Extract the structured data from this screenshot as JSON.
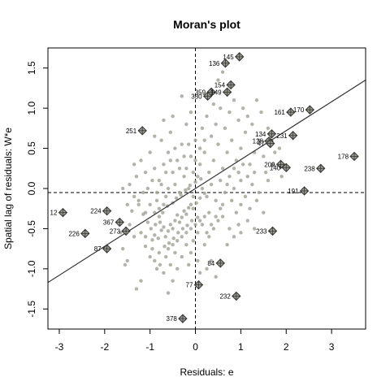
{
  "chart_data": {
    "type": "scatter",
    "title": "Moran's plot",
    "xlabel": "Residuals: e",
    "ylabel": "Spatial lag of residuals: W*e",
    "xlim": [
      -3.25,
      3.75
    ],
    "ylim": [
      -1.75,
      1.75
    ],
    "xticks": [
      -3,
      -2,
      -1,
      0,
      1,
      2,
      3
    ],
    "yticks": [
      -1.5,
      -1.0,
      -0.5,
      0.0,
      0.5,
      1.0,
      1.5
    ],
    "xtick_labels": [
      "-3",
      "-2",
      "-1",
      "0",
      "1",
      "2",
      "3"
    ],
    "ytick_labels": [
      "-1.5",
      "-1.0",
      "-0.5",
      "0.0",
      "0.5",
      "1.0",
      "1.5"
    ],
    "mean_x": 0.0,
    "mean_y": -0.05,
    "regression": {
      "intercept": 0.0,
      "slope": 0.36
    },
    "point_color": "#a6a69c",
    "influential_color": "#333333",
    "influential": [
      {
        "id": "145",
        "x": 0.97,
        "y": 1.64
      },
      {
        "id": "136",
        "x": 0.66,
        "y": 1.56
      },
      {
        "id": "154",
        "x": 0.78,
        "y": 1.29
      },
      {
        "id": "359",
        "x": 0.35,
        "y": 1.2
      },
      {
        "id": "149",
        "x": 0.7,
        "y": 1.2
      },
      {
        "id": "330",
        "x": 0.27,
        "y": 1.15
      },
      {
        "id": "170",
        "x": 2.52,
        "y": 0.98
      },
      {
        "id": "161",
        "x": 2.1,
        "y": 0.95
      },
      {
        "id": "251",
        "x": -1.17,
        "y": 0.72
      },
      {
        "id": "134",
        "x": 1.68,
        "y": 0.68
      },
      {
        "id": "231",
        "x": 2.15,
        "y": 0.66
      },
      {
        "id": "128",
        "x": 1.62,
        "y": 0.59
      },
      {
        "id": "47",
        "x": 1.65,
        "y": 0.56
      },
      {
        "id": "178",
        "x": 3.5,
        "y": 0.4
      },
      {
        "id": "209",
        "x": 1.88,
        "y": 0.3
      },
      {
        "id": "140",
        "x": 2.0,
        "y": 0.26
      },
      {
        "id": "238",
        "x": 2.76,
        "y": 0.25
      },
      {
        "id": "191",
        "x": 2.4,
        "y": -0.03
      },
      {
        "id": "224",
        "x": -1.95,
        "y": -0.28
      },
      {
        "id": "12",
        "x": -2.92,
        "y": -0.3
      },
      {
        "id": "367",
        "x": -1.67,
        "y": -0.42
      },
      {
        "id": "273",
        "x": -1.53,
        "y": -0.53
      },
      {
        "id": "233",
        "x": 1.7,
        "y": -0.53
      },
      {
        "id": "226",
        "x": -2.43,
        "y": -0.56
      },
      {
        "id": "87",
        "x": -1.95,
        "y": -0.75
      },
      {
        "id": "84",
        "x": 0.55,
        "y": -0.93
      },
      {
        "id": "77",
        "x": 0.07,
        "y": -1.2
      },
      {
        "id": "232",
        "x": 0.9,
        "y": -1.34
      },
      {
        "id": "378",
        "x": -0.28,
        "y": -1.62
      }
    ],
    "points": [
      [
        -1.3,
        -1.25
      ],
      [
        -1.2,
        -1.15
      ],
      [
        -1.5,
        -0.9
      ],
      [
        -1.1,
        -0.72
      ],
      [
        -0.95,
        -0.64
      ],
      [
        -0.9,
        -0.58
      ],
      [
        -0.82,
        -0.62
      ],
      [
        -0.75,
        -0.52
      ],
      [
        -0.7,
        -0.48
      ],
      [
        -0.66,
        -0.6
      ],
      [
        -0.6,
        -0.53
      ],
      [
        -0.55,
        -0.45
      ],
      [
        -0.5,
        -0.5
      ],
      [
        -0.45,
        -0.4
      ],
      [
        -0.4,
        -0.33
      ],
      [
        -0.35,
        -0.42
      ],
      [
        -0.3,
        -0.36
      ],
      [
        -0.25,
        -0.28
      ],
      [
        -0.2,
        -0.32
      ],
      [
        -0.15,
        -0.24
      ],
      [
        -0.1,
        -0.2
      ],
      [
        -0.05,
        -0.25
      ],
      [
        0.02,
        -0.18
      ],
      [
        0.1,
        -0.12
      ],
      [
        0.2,
        -0.06
      ],
      [
        -0.8,
        -0.35
      ],
      [
        -0.72,
        -0.3
      ],
      [
        -0.62,
        -0.22
      ],
      [
        -0.5,
        -0.18
      ],
      [
        -0.42,
        -0.12
      ],
      [
        -0.32,
        -0.08
      ],
      [
        -0.22,
        -0.02
      ],
      [
        -0.12,
        0.04
      ],
      [
        0.0,
        0.08
      ],
      [
        0.12,
        0.12
      ],
      [
        -0.9,
        -0.9
      ],
      [
        -0.8,
        -0.8
      ],
      [
        -0.68,
        -0.72
      ],
      [
        -0.58,
        -0.68
      ],
      [
        -0.48,
        -0.62
      ],
      [
        -0.38,
        -0.55
      ],
      [
        -0.28,
        -0.5
      ],
      [
        -0.18,
        -0.46
      ],
      [
        -0.08,
        -0.4
      ],
      [
        0.05,
        -0.36
      ],
      [
        -1.05,
        -0.42
      ],
      [
        -1.15,
        -0.32
      ],
      [
        -1.25,
        -0.2
      ],
      [
        -1.35,
        -0.1
      ],
      [
        -1.4,
        -0.28
      ],
      [
        -1.2,
        -0.55
      ],
      [
        -1.0,
        -0.85
      ],
      [
        -0.85,
        -1.0
      ],
      [
        -0.7,
        -1.05
      ],
      [
        -0.6,
        -1.3
      ],
      [
        -1.6,
        -0.75
      ],
      [
        -1.55,
        -0.95
      ],
      [
        -0.98,
        -0.5
      ],
      [
        -0.88,
        -0.45
      ],
      [
        -0.78,
        -0.42
      ],
      [
        -0.2,
        -0.7
      ],
      [
        -0.1,
        -0.8
      ],
      [
        0.05,
        -0.9
      ],
      [
        0.2,
        -0.7
      ],
      [
        0.3,
        -0.6
      ],
      [
        0.4,
        -0.5
      ],
      [
        0.5,
        -0.4
      ],
      [
        0.6,
        -0.35
      ],
      [
        0.35,
        -0.9
      ],
      [
        0.25,
        -1.0
      ],
      [
        0.45,
        -1.1
      ],
      [
        -0.4,
        -1.0
      ],
      [
        -0.5,
        -1.15
      ],
      [
        0.7,
        -0.7
      ],
      [
        0.85,
        -0.6
      ],
      [
        1.0,
        -0.55
      ],
      [
        1.15,
        -0.4
      ],
      [
        1.3,
        -0.5
      ],
      [
        0.9,
        -0.3
      ],
      [
        -0.9,
        0.25
      ],
      [
        -0.8,
        0.1
      ],
      [
        -0.7,
        0.3
      ],
      [
        -0.6,
        0.45
      ],
      [
        -0.5,
        0.2
      ],
      [
        -0.4,
        0.35
      ],
      [
        -0.3,
        0.55
      ],
      [
        -0.2,
        0.25
      ],
      [
        -0.1,
        0.4
      ],
      [
        0.0,
        0.6
      ],
      [
        -1.0,
        0.45
      ],
      [
        -1.1,
        0.2
      ],
      [
        -1.3,
        0.15
      ],
      [
        -1.45,
        0.05
      ],
      [
        -0.75,
        0.6
      ],
      [
        -0.55,
        0.7
      ],
      [
        -0.45,
        0.05
      ],
      [
        -0.35,
        -0.05
      ],
      [
        -0.65,
        -0.1
      ],
      [
        -0.85,
        -0.15
      ],
      [
        -1.15,
        -0.05
      ],
      [
        0.1,
        0.3
      ],
      [
        0.2,
        0.45
      ],
      [
        0.3,
        0.2
      ],
      [
        0.4,
        0.35
      ],
      [
        0.5,
        0.55
      ],
      [
        0.6,
        0.25
      ],
      [
        0.7,
        0.45
      ],
      [
        0.8,
        0.6
      ],
      [
        0.9,
        0.35
      ],
      [
        1.0,
        0.5
      ],
      [
        1.1,
        0.7
      ],
      [
        1.2,
        0.3
      ],
      [
        1.3,
        0.45
      ],
      [
        1.4,
        0.6
      ],
      [
        0.15,
        0.75
      ],
      [
        0.25,
        0.9
      ],
      [
        0.35,
        0.65
      ],
      [
        0.45,
        0.8
      ],
      [
        0.55,
        1.0
      ],
      [
        0.65,
        0.75
      ],
      [
        0.75,
        0.95
      ],
      [
        0.85,
        1.1
      ],
      [
        0.95,
        0.85
      ],
      [
        1.05,
        1.0
      ],
      [
        1.15,
        0.9
      ],
      [
        1.25,
        0.8
      ],
      [
        0.05,
        0.15
      ],
      [
        0.15,
        0.0
      ],
      [
        0.25,
        -0.1
      ],
      [
        0.35,
        0.05
      ],
      [
        0.45,
        -0.15
      ],
      [
        0.55,
        0.1
      ],
      [
        0.65,
        -0.05
      ],
      [
        0.75,
        0.15
      ],
      [
        0.85,
        0.0
      ],
      [
        1.0,
        0.1
      ],
      [
        1.1,
        -0.1
      ],
      [
        1.25,
        0.05
      ],
      [
        1.4,
        -0.05
      ],
      [
        1.55,
        0.2
      ],
      [
        1.5,
        0.4
      ],
      [
        1.75,
        0.45
      ],
      [
        1.85,
        0.5
      ],
      [
        1.6,
        0.1
      ],
      [
        1.45,
        0.95
      ],
      [
        1.35,
        1.1
      ],
      [
        0.5,
        1.35
      ],
      [
        0.6,
        1.45
      ],
      [
        0.4,
        1.05
      ],
      [
        -0.1,
        0.95
      ],
      [
        -0.2,
        0.8
      ],
      [
        -0.3,
        1.15
      ],
      [
        -0.5,
        0.9
      ],
      [
        -0.7,
        0.85
      ],
      [
        -0.9,
        0.65
      ],
      [
        0.3,
        -0.3
      ],
      [
        0.15,
        -0.45
      ],
      [
        0.05,
        -0.55
      ],
      [
        -0.05,
        -0.65
      ],
      [
        0.6,
        -0.2
      ],
      [
        0.8,
        -0.15
      ],
      [
        1.0,
        -0.2
      ],
      [
        1.2,
        -0.25
      ],
      [
        -0.25,
        0.15
      ],
      [
        -0.15,
        0.0
      ],
      [
        -0.05,
        -0.1
      ],
      [
        -0.6,
        0.0
      ],
      [
        -0.75,
        0.05
      ],
      [
        -1.05,
        0.0
      ],
      [
        -1.25,
        -0.15
      ],
      [
        -1.1,
        -0.6
      ],
      [
        -0.95,
        -0.75
      ],
      [
        -0.78,
        -0.95
      ],
      [
        -0.65,
        -0.85
      ],
      [
        -0.55,
        -0.95
      ],
      [
        -0.45,
        -0.8
      ],
      [
        -0.3,
        -0.85
      ],
      [
        -0.15,
        -0.95
      ],
      [
        0.1,
        -1.05
      ],
      [
        -1.45,
        -0.45
      ],
      [
        -1.35,
        -0.6
      ],
      [
        -1.65,
        -0.55
      ],
      [
        -1.5,
        -0.2
      ],
      [
        -1.6,
        0.0
      ],
      [
        1.5,
        -0.3
      ],
      [
        1.35,
        -0.15
      ],
      [
        0.95,
        -0.45
      ],
      [
        0.75,
        -0.5
      ],
      [
        0.2,
        0.6
      ],
      [
        0.1,
        0.5
      ],
      [
        0.0,
        0.35
      ],
      [
        -0.05,
        0.2
      ],
      [
        -0.15,
        0.55
      ],
      [
        -0.25,
        0.4
      ],
      [
        -0.35,
        0.25
      ],
      [
        -0.45,
        0.5
      ],
      [
        -0.55,
        0.35
      ],
      [
        -0.65,
        0.2
      ],
      [
        -1.2,
        0.35
      ],
      [
        -1.35,
        0.3
      ],
      [
        -0.95,
        0.1
      ],
      [
        -0.85,
        -0.05
      ],
      [
        1.6,
        0.75
      ],
      [
        1.7,
        0.3
      ],
      [
        1.9,
        0.15
      ],
      [
        1.3,
        0.2
      ],
      [
        1.15,
        0.15
      ],
      [
        1.05,
        0.3
      ],
      [
        0.95,
        0.2
      ],
      [
        0.85,
        0.25
      ],
      [
        0.7,
        0.05
      ],
      [
        0.55,
        -0.25
      ],
      [
        0.45,
        -0.35
      ],
      [
        0.35,
        -0.45
      ],
      [
        0.25,
        -0.55
      ],
      [
        -0.7,
        -0.2
      ],
      [
        -0.8,
        -0.25
      ],
      [
        -0.9,
        -0.3
      ],
      [
        -1.0,
        -0.2
      ],
      [
        -1.1,
        -0.3
      ],
      [
        -0.6,
        -0.75
      ],
      [
        -0.5,
        -0.7
      ],
      [
        -0.4,
        -0.65
      ],
      [
        -0.3,
        -0.6
      ],
      [
        -0.2,
        -0.55
      ],
      [
        -0.1,
        -0.5
      ],
      [
        0.0,
        -0.45
      ],
      [
        0.1,
        -0.4
      ],
      [
        0.2,
        -0.35
      ]
    ]
  }
}
